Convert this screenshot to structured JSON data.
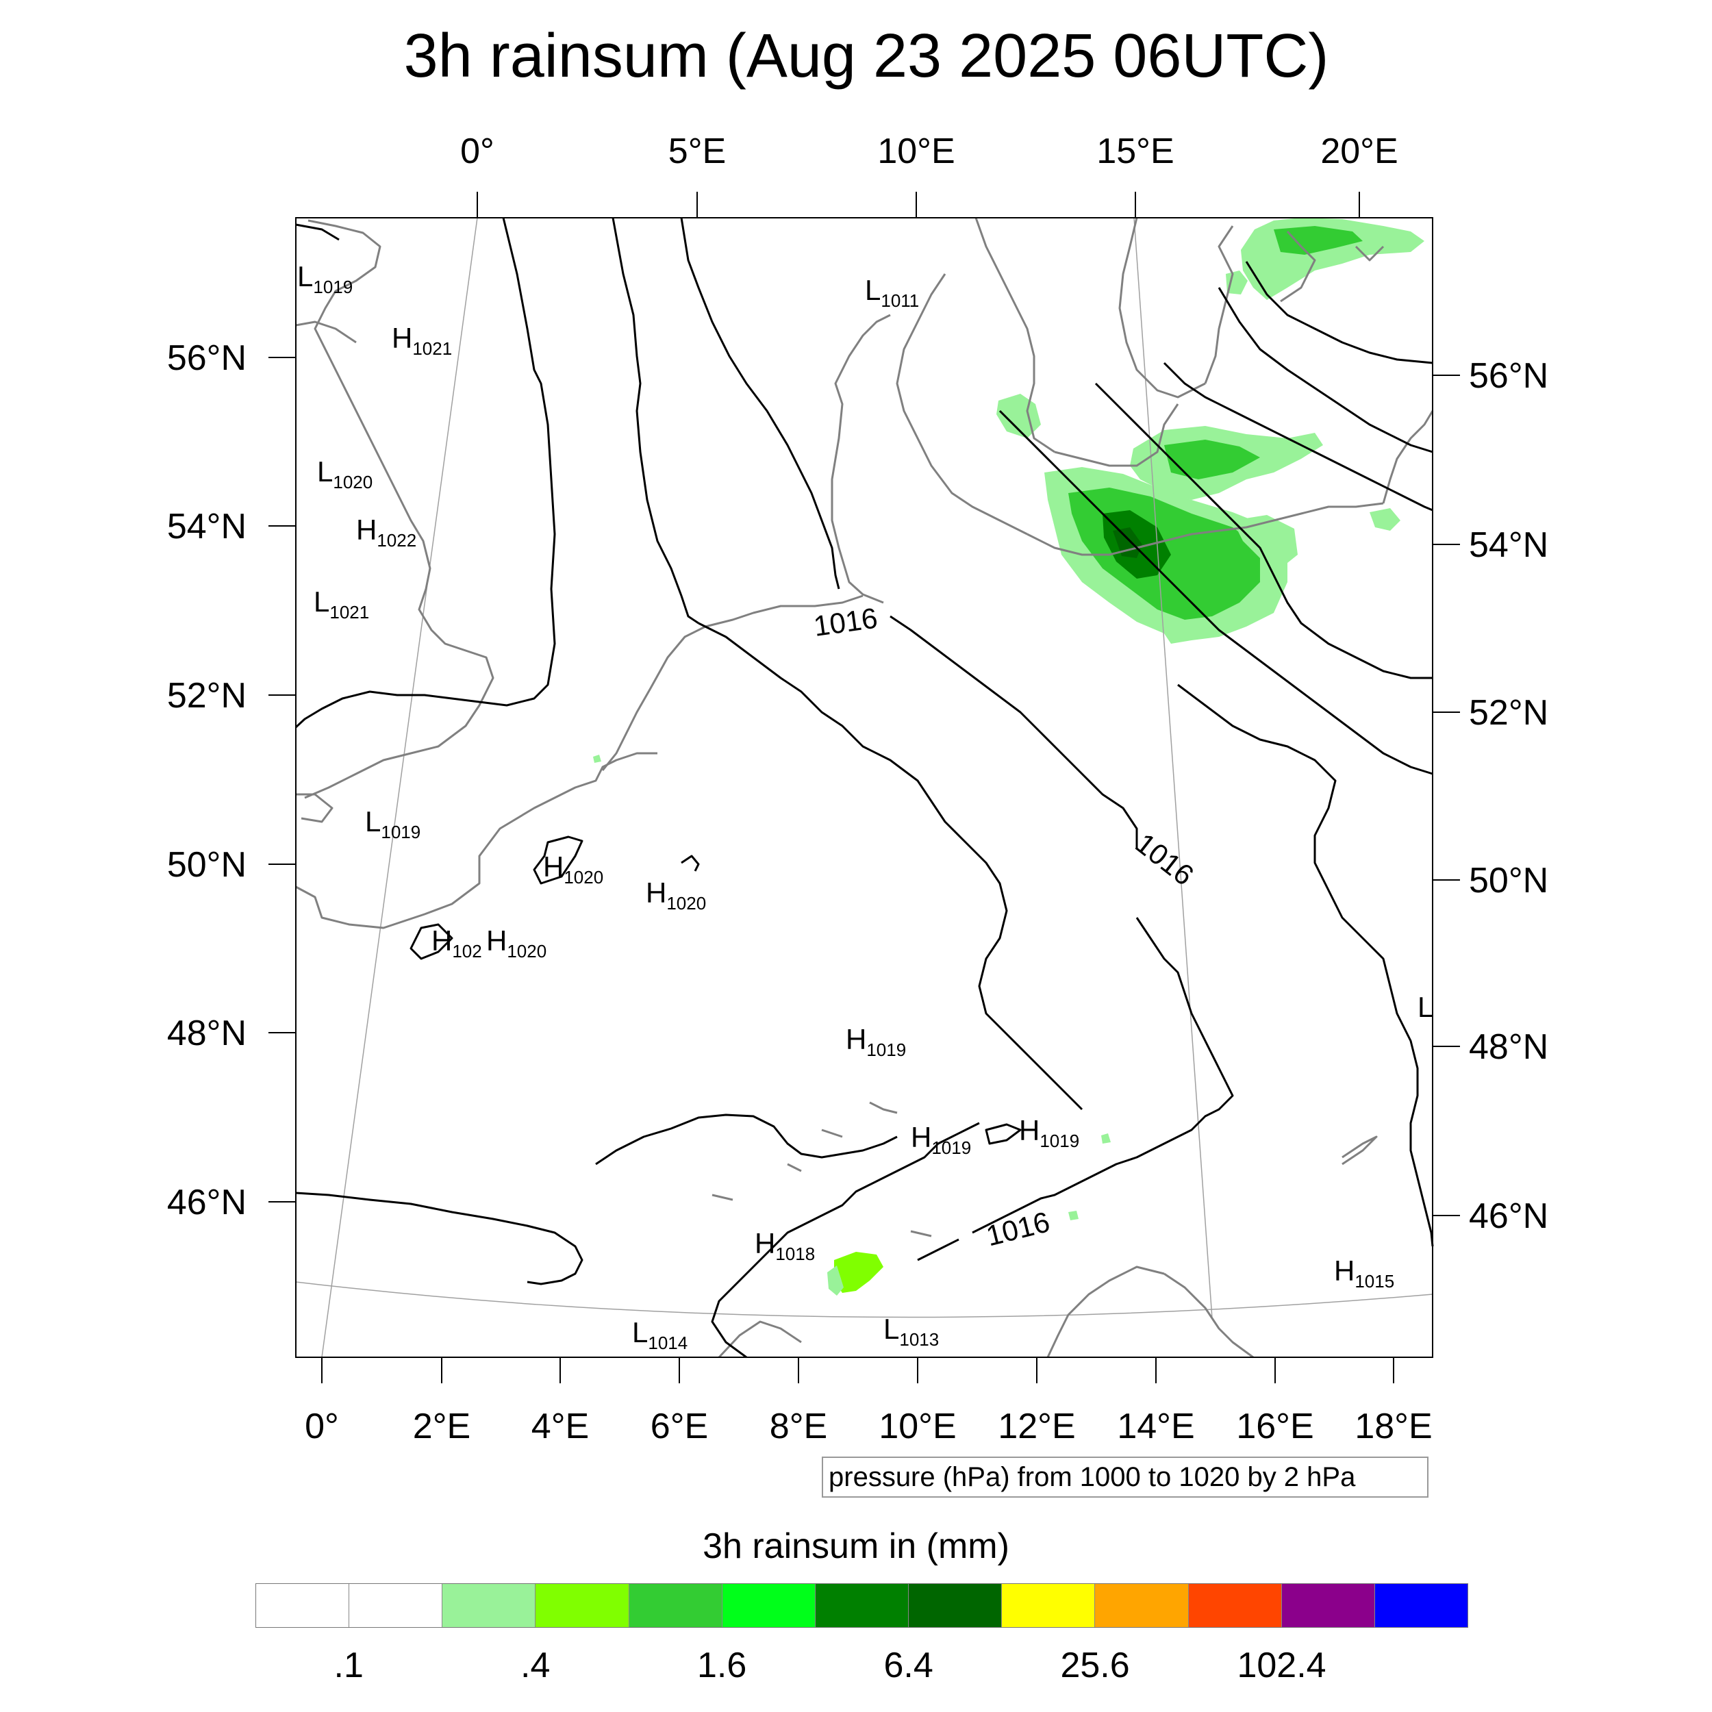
{
  "title": "3h rainsum (Aug 23 2025 06UTC)",
  "top_lon_labels": [
    "0°",
    "5°E",
    "10°E",
    "15°E",
    "20°E"
  ],
  "bottom_lon_labels": [
    "0°",
    "2°E",
    "4°E",
    "6°E",
    "8°E",
    "10°E",
    "12°E",
    "14°E",
    "16°E",
    "18°E"
  ],
  "left_lat_labels": [
    "56°N",
    "54°N",
    "52°N",
    "50°N",
    "48°N",
    "46°N"
  ],
  "right_lat_labels": [
    "56°N",
    "54°N",
    "52°N",
    "50°N",
    "48°N",
    "46°N"
  ],
  "pressure_note": "pressure (hPa) from 1000 to 1020 by 2 hPa",
  "colorbar": {
    "title": "3h rainsum in (mm)",
    "colors": [
      "#ffffff",
      "#ffffff",
      "#99f299",
      "#80ff00",
      "#33cc33",
      "#00ff1a",
      "#008000",
      "#006600",
      "#ffff00",
      "#ffa500",
      "#ff4500",
      "#8b008b",
      "#0000ff"
    ],
    "labels": [
      ".1",
      ".4",
      "1.6",
      "6.4",
      "25.6",
      "102.4"
    ],
    "levels": [
      0.1,
      0.4,
      1.6,
      6.4,
      25.6,
      102.4
    ]
  },
  "contour_labels": [
    "1016",
    "1016",
    "1016"
  ],
  "pressure_centers": [
    {
      "type": "L",
      "value": "1019"
    },
    {
      "type": "H",
      "value": "1021"
    },
    {
      "type": "L",
      "value": "1020"
    },
    {
      "type": "H",
      "value": "1022"
    },
    {
      "type": "L",
      "value": "1021"
    },
    {
      "type": "L",
      "value": "1019"
    },
    {
      "type": "H",
      "value": "1020"
    },
    {
      "type": "H",
      "value": "1020"
    },
    {
      "type": "H",
      "value": "102"
    },
    {
      "type": "H",
      "value": "1020"
    },
    {
      "type": "L",
      "value": "1011"
    },
    {
      "type": "H",
      "value": "1019"
    },
    {
      "type": "H",
      "value": "1019"
    },
    {
      "type": "H",
      "value": "1019"
    },
    {
      "type": "H",
      "value": "1018"
    },
    {
      "type": "L",
      "value": "1014"
    },
    {
      "type": "L",
      "value": "1013"
    },
    {
      "type": "H",
      "value": "1015"
    },
    {
      "type": "L",
      "value": ""
    }
  ]
}
